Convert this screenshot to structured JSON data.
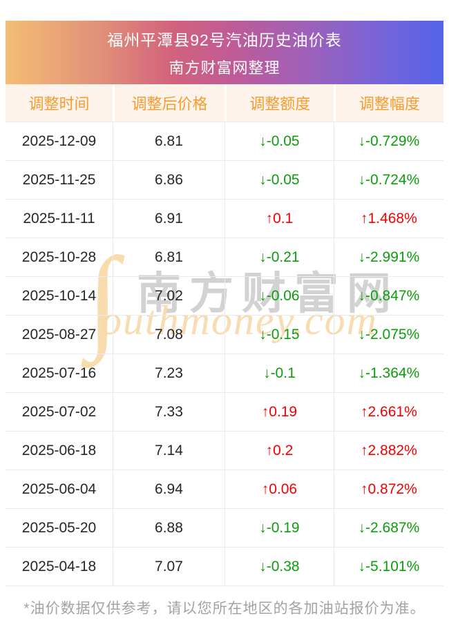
{
  "banner": {
    "title": "福州平潭县92号汽油历史油价表",
    "subtitle": "南方财富网整理"
  },
  "table": {
    "headers": [
      "调整时间",
      "调整后价格",
      "调整额度",
      "调整幅度"
    ],
    "rows": [
      {
        "date": "2025-12-09",
        "price": "6.81",
        "change": "↓-0.05",
        "pct": "↓-0.729%",
        "dir": "down"
      },
      {
        "date": "2025-11-25",
        "price": "6.86",
        "change": "↓-0.05",
        "pct": "↓-0.724%",
        "dir": "down"
      },
      {
        "date": "2025-11-11",
        "price": "6.91",
        "change": "↑0.1",
        "pct": "↑1.468%",
        "dir": "up"
      },
      {
        "date": "2025-10-28",
        "price": "6.81",
        "change": "↓-0.21",
        "pct": "↓-2.991%",
        "dir": "down"
      },
      {
        "date": "2025-10-14",
        "price": "7.02",
        "change": "↓-0.06",
        "pct": "↓-0.847%",
        "dir": "down"
      },
      {
        "date": "2025-08-27",
        "price": "7.08",
        "change": "↓-0.15",
        "pct": "↓-2.075%",
        "dir": "down"
      },
      {
        "date": "2025-07-16",
        "price": "7.23",
        "change": "↓-0.1",
        "pct": "↓-1.364%",
        "dir": "down"
      },
      {
        "date": "2025-07-02",
        "price": "7.33",
        "change": "↑0.19",
        "pct": "↑2.661%",
        "dir": "up"
      },
      {
        "date": "2025-06-18",
        "price": "7.14",
        "change": "↑0.2",
        "pct": "↑2.882%",
        "dir": "up"
      },
      {
        "date": "2025-06-04",
        "price": "6.94",
        "change": "↑0.06",
        "pct": "↑0.872%",
        "dir": "up"
      },
      {
        "date": "2025-05-20",
        "price": "6.88",
        "change": "↓-0.19",
        "pct": "↓-2.687%",
        "dir": "down"
      },
      {
        "date": "2025-04-18",
        "price": "7.07",
        "change": "↓-0.38",
        "pct": "↓-5.101%",
        "dir": "down"
      }
    ]
  },
  "watermark": {
    "initial": "∫",
    "cn_text": "南方财富网",
    "en_text": "outhmoney.com"
  },
  "footer": {
    "note": "*油价数据仅供参考，请以您所在地区的各加油站报价为准。"
  },
  "colors": {
    "up_red": "#f30000",
    "down_green": "#0b9e0b",
    "header_text_orange": "#f79b2e",
    "header_bg": "#fdf3ea",
    "banner_gradient_left": "#f4be74",
    "banner_gradient_mid": "#bf5b97",
    "banner_gradient_right": "#5463e8",
    "row_border": "#e6ecf5",
    "footer_gray": "#a3a3a3",
    "watermark_orange": "#f8d9a8"
  }
}
